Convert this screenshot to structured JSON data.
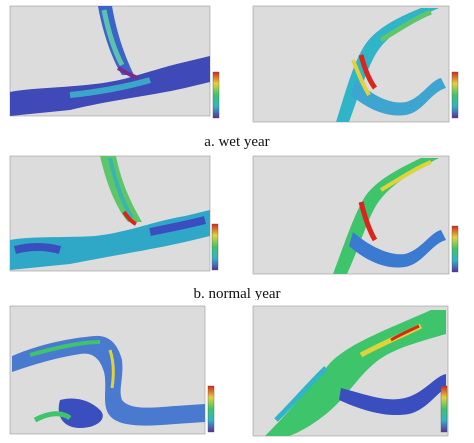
{
  "captions": {
    "wet": "a. wet year",
    "normal": "b. normal year"
  },
  "colors": {
    "background": "#dcdcdc",
    "low": "#2b3fb8",
    "mid": "#2fb4c8",
    "high": "#e0d33a",
    "peak": "#d8261c"
  }
}
